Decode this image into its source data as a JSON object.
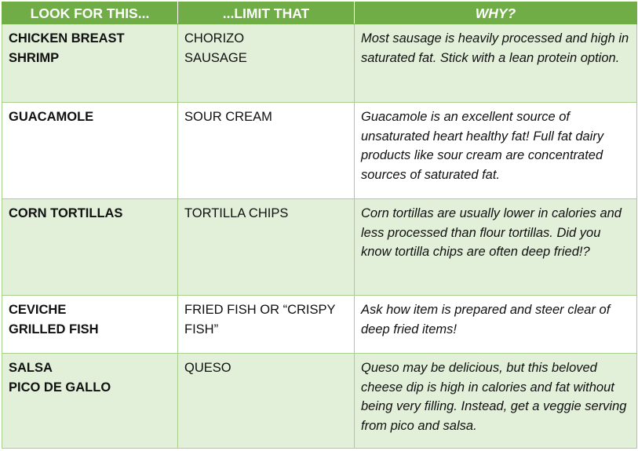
{
  "table": {
    "headers": [
      "LOOK FOR THIS...",
      "...LIMIT THAT",
      "WHY?"
    ],
    "rows": [
      {
        "look": [
          "CHICKEN BREAST",
          "SHRIMP"
        ],
        "limit": [
          "CHORIZO",
          "SAUSAGE"
        ],
        "why": "Most sausage is heavily processed and high in saturated fat. Stick with a lean protein option."
      },
      {
        "look": [
          "GUACAMOLE"
        ],
        "limit": [
          "SOUR CREAM"
        ],
        "why": "Guacamole is an excellent source of unsaturated heart healthy fat! Full fat dairy products like sour cream are concentrated sources of saturated fat."
      },
      {
        "look": [
          "CORN TORTILLAS"
        ],
        "limit": [
          "TORTILLA CHIPS"
        ],
        "why": "Corn tortillas are usually lower in calories and less processed than flour tortillas. Did you know tortilla chips are often deep fried!?"
      },
      {
        "look": [
          "CEVICHE",
          "GRILLED FISH"
        ],
        "limit": [
          "FRIED FISH OR “CRISPY FISH”"
        ],
        "why": "Ask how item is prepared and steer clear of deep fried items!"
      },
      {
        "look": [
          "SALSA",
          "PICO DE GALLO"
        ],
        "limit": [
          "QUESO"
        ],
        "why": "Queso may be delicious, but this beloved cheese dip is high in calories and fat without being very filling. Instead, get a veggie serving from pico and salsa."
      }
    ]
  }
}
